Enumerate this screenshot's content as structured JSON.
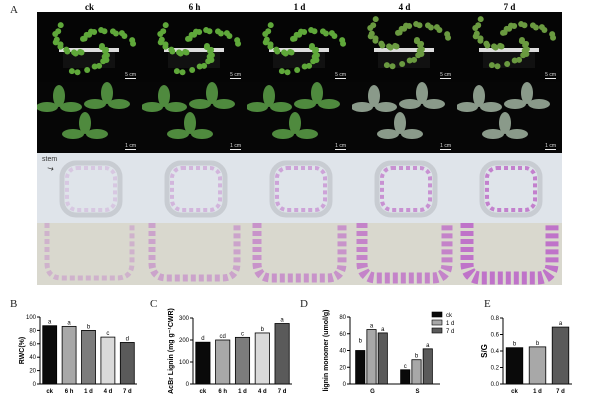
{
  "panel_a": {
    "label": "A",
    "columns": [
      "ck",
      "6 h",
      "1 d",
      "4 d",
      "7 d"
    ],
    "plant_scale": "5 cm",
    "leaf_scale": "1 cm",
    "stem_annotation": "stem"
  },
  "chart_data": [
    {
      "panel": "B",
      "type": "bar",
      "categories": [
        "ck",
        "6 h",
        "1 d",
        "4 d",
        "7 d"
      ],
      "values": [
        87,
        86,
        80,
        70,
        62
      ],
      "letters": [
        "a",
        "a",
        "b",
        "c",
        "d"
      ],
      "ylabel": "RWC(%)",
      "ylim": [
        0,
        100
      ],
      "yticks": [
        0,
        20,
        40,
        60,
        80,
        100
      ],
      "colors": [
        "#0a0a0a",
        "#a8a8a8",
        "#7c7c7c",
        "#dadada",
        "#5a5a5a"
      ]
    },
    {
      "panel": "C",
      "type": "bar",
      "categories": [
        "ck",
        "6 h",
        "1 d",
        "4 d",
        "7 d"
      ],
      "values": [
        190,
        200,
        212,
        232,
        275
      ],
      "letters": [
        "d",
        "cd",
        "c",
        "b",
        "a"
      ],
      "ylabel": "AcBr Lignin  (mg g⁻¹CWR)",
      "ylim": [
        0,
        300
      ],
      "yticks": [
        0,
        100,
        200,
        300
      ],
      "colors": [
        "#0a0a0a",
        "#a8a8a8",
        "#7c7c7c",
        "#dadada",
        "#5a5a5a"
      ]
    },
    {
      "panel": "D",
      "type": "bar",
      "categories": [
        "G",
        "S"
      ],
      "series": [
        {
          "name": "ck",
          "values": [
            40,
            17
          ],
          "letters": [
            "b",
            "c"
          ],
          "color": "#0a0a0a"
        },
        {
          "name": "1 d",
          "values": [
            65,
            29
          ],
          "letters": [
            "a",
            "b"
          ],
          "color": "#a8a8a8"
        },
        {
          "name": "7 d",
          "values": [
            61,
            42
          ],
          "letters": [
            "a",
            "a"
          ],
          "color": "#5a5a5a"
        }
      ],
      "ylabel": "lignin monomer (umol/g)",
      "ylim": [
        0,
        80
      ],
      "yticks": [
        0,
        20,
        40,
        60,
        80
      ],
      "legend": "top-right"
    },
    {
      "panel": "E",
      "type": "bar",
      "categories": [
        "ck",
        "1 d",
        "7 d"
      ],
      "values": [
        0.44,
        0.45,
        0.69
      ],
      "letters": [
        "b",
        "b",
        "a"
      ],
      "ylabel": "S/G",
      "ylim": [
        0,
        0.8
      ],
      "yticks": [
        "0.0",
        "0.2",
        "0.4",
        "0.6",
        "0.8"
      ],
      "colors": [
        "#0a0a0a",
        "#a8a8a8",
        "#5a5a5a"
      ]
    }
  ]
}
